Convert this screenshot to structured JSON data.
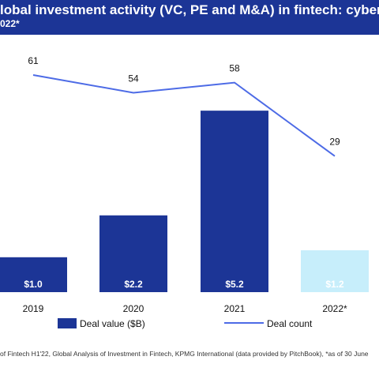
{
  "header": {
    "title": "lobal investment activity (VC, PE and M&A) in fintech: cybersecurity",
    "subtitle": "022*"
  },
  "chart_data": {
    "type": "bar",
    "categories": [
      "2019",
      "2020",
      "2021",
      "2022*"
    ],
    "series": [
      {
        "name": "Deal value ($B)",
        "kind": "bar",
        "values": [
          1.0,
          2.2,
          5.2,
          1.2
        ],
        "labels": [
          "$1.0",
          "$2.2",
          "$5.2",
          "$1.2"
        ],
        "colors": [
          "#1c3596",
          "#1c3596",
          "#1c3596",
          "#c7eefb"
        ]
      },
      {
        "name": "Deal count",
        "kind": "line",
        "values": [
          61,
          54,
          58,
          29
        ],
        "color": "#4d6be6"
      }
    ],
    "legend": "bottom",
    "grid": false
  },
  "source": "of Fintech H1'22, Global Analysis of Investment in Fintech, KPMG International (data provided by PitchBook), *as of 30 June"
}
